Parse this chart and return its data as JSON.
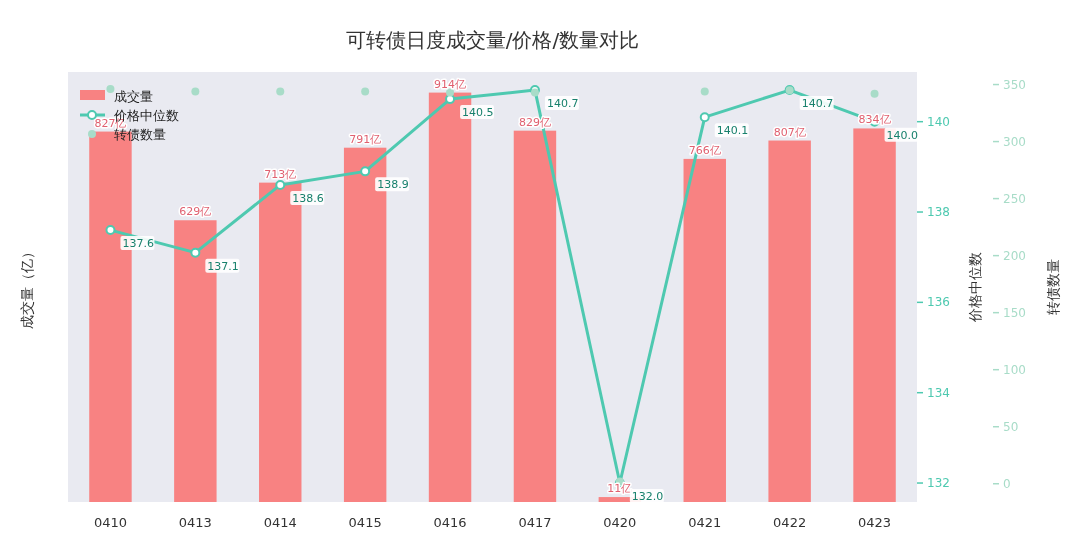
{
  "chart_data": {
    "type": "bar",
    "title": "可转债日度成交量/价格/数量对比",
    "ylabel": "成交量（亿）",
    "y2label": "价格中位数",
    "y3label": "转债数量",
    "categories": [
      "0410",
      "0413",
      "0414",
      "0415",
      "0416",
      "0417",
      "0420",
      "0421",
      "0422",
      "0423"
    ],
    "series": [
      {
        "name": "成交量",
        "color": "#f88282",
        "values": [
          827,
          629,
          713,
          791,
          914,
          829,
          11,
          766,
          807,
          834
        ],
        "value_labels": [
          "827亿",
          "629亿",
          "713亿",
          "791亿",
          "914亿",
          "829亿",
          "11亿",
          "766亿",
          "807亿",
          "834亿"
        ]
      },
      {
        "name": "价格中位数",
        "type": "line",
        "axis": "y2",
        "color": "#4ec9b0",
        "marker": "circle",
        "values": [
          137.6,
          137.1,
          138.6,
          138.9,
          140.5,
          140.7,
          132.0,
          140.1,
          140.7,
          140.0
        ],
        "value_labels": [
          "137.6",
          "137.1",
          "138.6",
          "138.9",
          "140.5",
          "140.7",
          "132.0",
          "140.1",
          "140.7",
          "140.0"
        ]
      },
      {
        "name": "转债数量",
        "type": "scatter",
        "axis": "y3",
        "color": "#a8dcc8",
        "values": [
          346,
          344,
          344,
          344,
          343,
          343,
          2,
          344,
          345,
          342
        ]
      }
    ],
    "ylim": [
      0,
      960
    ],
    "y2lim": [
      131.58,
      141.1
    ],
    "y2ticks": [
      132,
      134,
      136,
      138,
      140
    ],
    "y3lim": [
      -16,
      361
    ],
    "y3ticks": [
      0,
      50,
      100,
      150,
      200,
      250,
      300,
      350
    ],
    "legend": "top left",
    "grid": false
  }
}
